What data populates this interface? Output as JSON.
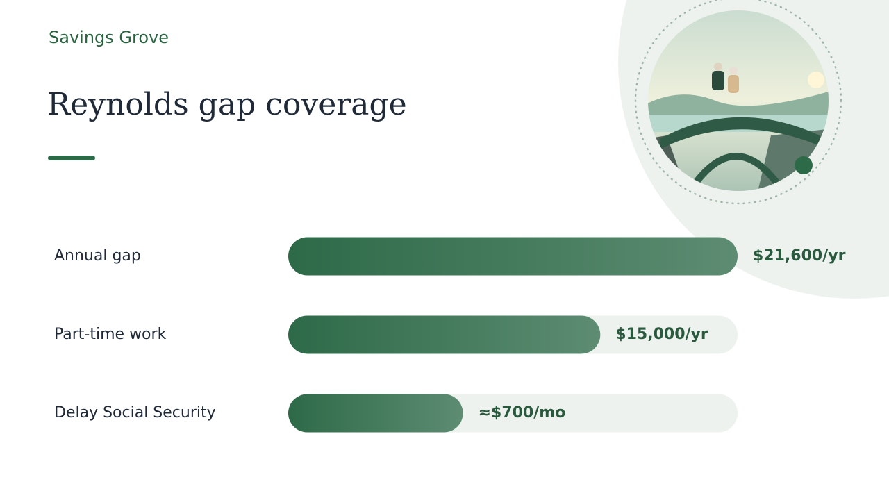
{
  "brand": "Savings Grove",
  "chart_data": {
    "type": "bar",
    "orientation": "horizontal",
    "title": "Reynolds gap coverage",
    "categories": [
      "Annual gap",
      "Part-time work",
      "Delay Social Security"
    ],
    "values": [
      21600,
      15000,
      8400
    ],
    "value_labels": [
      "$21,600/yr",
      "$15,000/yr",
      "≈$700/mo"
    ],
    "xlim": [
      0,
      21600
    ],
    "color": "#2d6a48"
  }
}
